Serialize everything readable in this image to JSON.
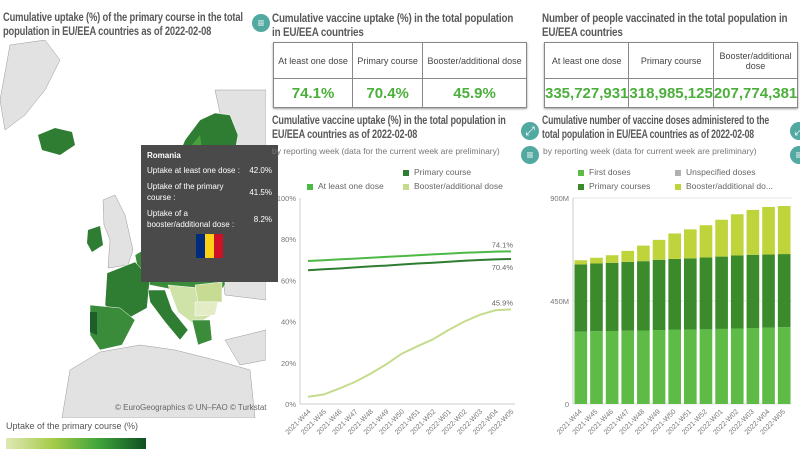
{
  "map_panel": {
    "title": "Cumulative uptake (%) of the primary course in the total population in EU/EEA countries as of 2022-02-08",
    "attribution": "© EuroGeographics © UN–FAO © Turkstat",
    "legend_title": "Uptake of the primary course (%)",
    "legend_colors": [
      "#dfe8b4",
      "#a6cc4a",
      "#3fa33a",
      "#0f4f23"
    ],
    "tooltip": {
      "country": "Romania",
      "rows": [
        {
          "label": "Uptake at least one dose :",
          "value": "42.0%"
        },
        {
          "label": "Uptake of the primary course :",
          "value": "41.5%"
        },
        {
          "label": "Uptake of a booster/additional dose :",
          "value": "8.2%"
        }
      ],
      "flag_colors": [
        "#002b7f",
        "#fcd116",
        "#ce1126"
      ]
    }
  },
  "uptake_table": {
    "title": "Cumulative vaccine uptake (%) in the total population in EU/EEA countries",
    "headers": [
      "At least one dose",
      "Primary course",
      "Booster/additional dose"
    ],
    "values": [
      "74.1%",
      "70.4%",
      "45.9%"
    ]
  },
  "people_table": {
    "title": "Number of people vaccinated in the total population in EU/EEA countries",
    "headers": [
      "At least one dose",
      "Primary course",
      "Booster/additional dose"
    ],
    "values": [
      "335,727,931",
      "318,985,125",
      "207,774,381"
    ]
  },
  "chart_data": [
    {
      "type": "line",
      "title": "Cumulative vaccine uptake (%) in the total population in EU/EEA countries as of 2022-02-08",
      "subtitle": "by reporting week (data for the current week are preliminary)",
      "x": [
        "2021-W44",
        "2021-W45",
        "2021-W46",
        "2021-W47",
        "2021-W48",
        "2021-W49",
        "2021-W50",
        "2021-W51",
        "2021-W52",
        "2022-W01",
        "2022-W02",
        "2022-W03",
        "2022-W04",
        "2022-W05"
      ],
      "yticks": [
        "0%",
        "20%",
        "40%",
        "60%",
        "80%",
        "100%"
      ],
      "ylim": [
        0,
        100
      ],
      "legend_placement": "top",
      "series": [
        {
          "name": "At least one dose",
          "color": "#4cb944",
          "values": [
            69.4,
            69.8,
            70.2,
            70.6,
            71.0,
            71.4,
            71.8,
            72.2,
            72.6,
            73.0,
            73.4,
            73.7,
            74.0,
            74.1
          ],
          "end_label": "74.1%"
        },
        {
          "name": "Primary course",
          "color": "#2e7d32",
          "values": [
            64.9,
            65.4,
            65.8,
            66.3,
            66.8,
            67.2,
            67.7,
            68.2,
            68.6,
            69.1,
            69.5,
            69.9,
            70.2,
            70.4
          ],
          "end_label": "70.4%"
        },
        {
          "name": "Booster/additional dose",
          "color": "#c5dc8c",
          "values": [
            3.5,
            4.6,
            7.5,
            10.7,
            14.7,
            19.2,
            24.4,
            28.0,
            31.4,
            35.9,
            40.0,
            43.3,
            45.5,
            45.9
          ],
          "end_label": "45.9%"
        }
      ]
    },
    {
      "type": "bar",
      "stacked": true,
      "title": "Cumulative number of vaccine doses administered to the total population in EU/EEA countries as of 2022-02-08",
      "subtitle": "by reporting week (data for current week are preliminary)",
      "x": [
        "2021-W44",
        "2021-W45",
        "2021-W46",
        "2021-W47",
        "2021-W48",
        "2021-W49",
        "2021-W50",
        "2021-W51",
        "2021-W52",
        "2022-W01",
        "2022-W02",
        "2022-W03",
        "2022-W04",
        "2022-W05"
      ],
      "yticks": [
        "0",
        "450M",
        "900M"
      ],
      "ylim": [
        0,
        900
      ],
      "unit": "millions",
      "legend_placement": "top",
      "series": [
        {
          "name": "First doses",
          "color": "#5dbb46",
          "values": [
            316,
            318,
            319,
            320,
            321,
            323,
            324,
            325,
            326,
            328,
            330,
            332,
            334,
            336
          ]
        },
        {
          "name": "Unspecified doses",
          "color": "#b0b0b0",
          "values": [
            0,
            0,
            0,
            0,
            0,
            0,
            0,
            0,
            0,
            0,
            0,
            0,
            0,
            0
          ]
        },
        {
          "name": "Primary courses",
          "color": "#3b8a2c",
          "values": [
            294,
            296,
            298,
            301,
            303,
            307,
            310,
            311,
            314,
            316,
            319,
            320,
            319,
            319
          ]
        },
        {
          "name": "Booster/additional do...",
          "color": "#bfd43a",
          "values": [
            18,
            25,
            33,
            48,
            68,
            87,
            111,
            127,
            141,
            161,
            180,
            196,
            208,
            210
          ]
        }
      ]
    }
  ]
}
